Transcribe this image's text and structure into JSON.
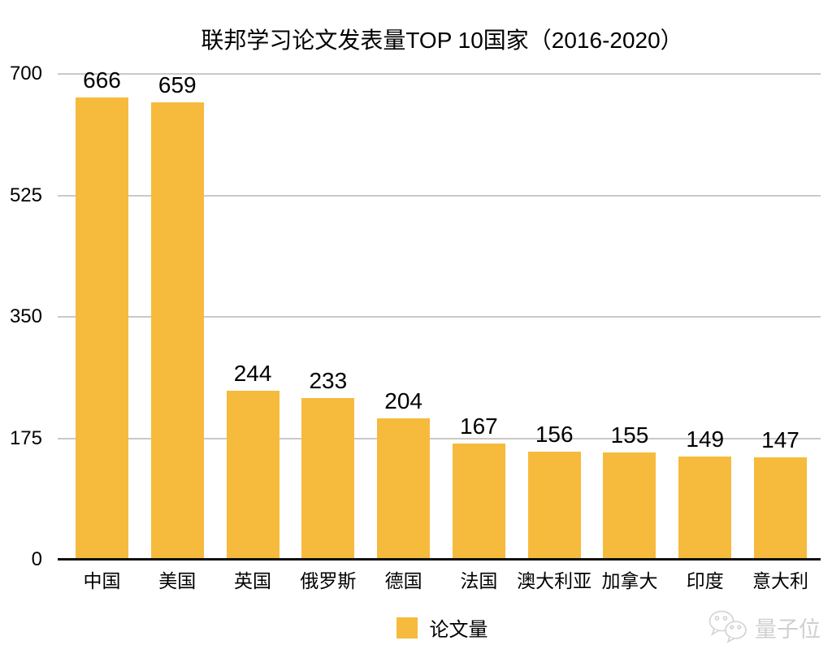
{
  "chart_data": {
    "type": "bar",
    "title": "联邦学习论文发表量TOP 10国家（2016-2020）",
    "categories": [
      "中国",
      "美国",
      "英国",
      "俄罗斯",
      "德国",
      "法国",
      "澳大利亚",
      "加拿大",
      "印度",
      "意大利"
    ],
    "values": [
      666,
      659,
      244,
      233,
      204,
      167,
      156,
      155,
      149,
      147
    ],
    "series_name": "论文量",
    "xlabel": "",
    "ylabel": "",
    "ylim": [
      0,
      700
    ],
    "yticks": [
      0,
      175,
      350,
      525,
      700
    ],
    "grid": true,
    "value_labels": true,
    "legend_position": "bottom-center",
    "bar_color": "#F6BA3D"
  },
  "legend": {
    "label": "论文量",
    "swatch_color": "#F6BA3D"
  },
  "watermark": {
    "icon": "wechat-icon",
    "text": "量子位"
  },
  "colors": {
    "bar": "#F6BA3D",
    "grid": "#C9C9C9",
    "axis": "#111111",
    "text": "#000000",
    "watermark": "#CFCFCF"
  }
}
